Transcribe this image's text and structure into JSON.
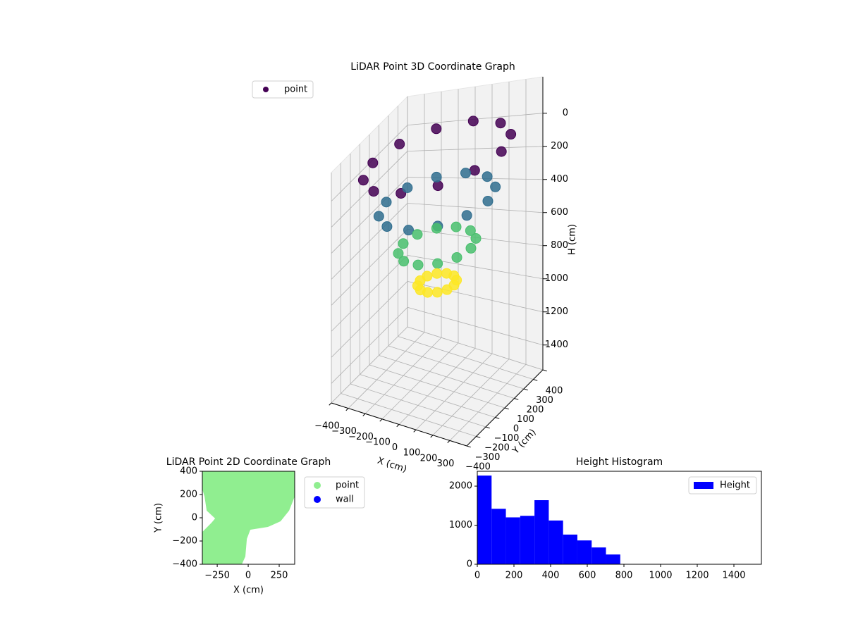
{
  "chart_data": [
    {
      "type": "scatter3d",
      "title": "LiDAR Point 3D Coordinate Graph",
      "xlabel": "X (cm)",
      "ylabel": "Y (cm)",
      "zlabel": "H (cm)",
      "xlim": [
        -400,
        400
      ],
      "ylim": [
        -400,
        400
      ],
      "zlim": [
        -220,
        1550
      ],
      "zinverted": true,
      "xticks": [
        {
          "value": -400,
          "label": "−400"
        },
        {
          "value": -300,
          "label": "−300"
        },
        {
          "value": -200,
          "label": "−200"
        },
        {
          "value": -100,
          "label": "−100"
        },
        0,
        100,
        200,
        300
      ],
      "yticks": [
        {
          "value": -400,
          "label": "−400"
        },
        {
          "value": -300,
          "label": "−300"
        },
        {
          "value": -200,
          "label": "−200"
        },
        {
          "value": -100,
          "label": "−100"
        },
        0,
        100,
        200,
        300,
        400
      ],
      "zticks": [
        0,
        200,
        400,
        600,
        800,
        1000,
        1200,
        1400
      ],
      "colormap": "viridis",
      "legend": "upper left",
      "grid": true,
      "series": [
        {
          "name": "point",
          "color": "#440154",
          "x": [
            380,
            329,
            190,
            0,
            -190,
            -329,
            -380,
            -329,
            -190,
            0,
            190,
            329,
            300,
            260,
            150,
            0,
            -150,
            -260,
            -300,
            -260,
            -150,
            0,
            150,
            260,
            200,
            173,
            100,
            0,
            -100,
            -173,
            -200,
            -173,
            -100,
            0,
            100,
            173,
            100,
            87,
            50,
            0,
            -50,
            -87,
            -100,
            -87,
            -50,
            0,
            50,
            87
          ],
          "y": [
            0,
            190,
            329,
            380,
            329,
            190,
            0,
            -190,
            -329,
            -380,
            -329,
            -190,
            0,
            150,
            260,
            300,
            260,
            150,
            0,
            -150,
            -260,
            -300,
            -260,
            -150,
            0,
            100,
            173,
            200,
            173,
            100,
            0,
            -100,
            -173,
            -200,
            -173,
            -100,
            0,
            50,
            87,
            100,
            87,
            50,
            0,
            -50,
            -87,
            -100,
            -87,
            -50
          ],
          "z": [
            0,
            0,
            0,
            0,
            0,
            0,
            0,
            0,
            0,
            0,
            0,
            0,
            300,
            300,
            300,
            300,
            300,
            300,
            300,
            300,
            300,
            300,
            300,
            300,
            600,
            600,
            600,
            600,
            600,
            600,
            600,
            600,
            600,
            600,
            600,
            600,
            850,
            850,
            850,
            850,
            850,
            850,
            850,
            850,
            850,
            850,
            850,
            850
          ]
        }
      ]
    },
    {
      "type": "scatter",
      "title": "LiDAR Point 2D Coordinate Graph",
      "xlabel": "X (cm)",
      "ylabel": "Y (cm)",
      "xlim": [
        -370,
        375
      ],
      "ylim": [
        -400,
        400
      ],
      "xticks": [
        {
          "value": -250,
          "label": "−250"
        },
        0,
        250
      ],
      "yticks": [
        {
          "value": -400,
          "label": "−400"
        },
        {
          "value": -200,
          "label": "−200"
        },
        0,
        200,
        400
      ],
      "legend": "outside right",
      "series": [
        {
          "name": "point",
          "color": "#90ee90",
          "x": [
            -369,
            375,
            375,
            330,
            261,
            159,
            17,
            -11,
            -23,
            -51,
            -369,
            -369,
            -295,
            -267,
            -335,
            -352,
            -369
          ],
          "y": [
            400,
            400,
            182,
            61,
            -30,
            -79,
            -103,
            -182,
            -333,
            -400,
            -400,
            -121,
            -42,
            -6,
            61,
            182,
            242
          ]
        },
        {
          "name": "wall",
          "color": "#0000ff",
          "x": [],
          "y": []
        }
      ]
    },
    {
      "type": "histogram",
      "title": "Height Histogram",
      "name": "Height",
      "color": "#0000ff",
      "legend": "upper right",
      "bins": [
        0,
        78,
        156,
        234,
        312,
        390,
        468,
        546,
        624,
        702,
        780
      ],
      "values": [
        2270,
        1420,
        1200,
        1240,
        1640,
        1120,
        760,
        610,
        430,
        250
      ],
      "xlim": [
        0,
        1550
      ],
      "ylim": [
        0,
        2380
      ],
      "xticks": [
        0,
        200,
        400,
        600,
        800,
        1000,
        1200,
        1400
      ],
      "yticks": [
        0,
        1000,
        2000
      ]
    }
  ]
}
